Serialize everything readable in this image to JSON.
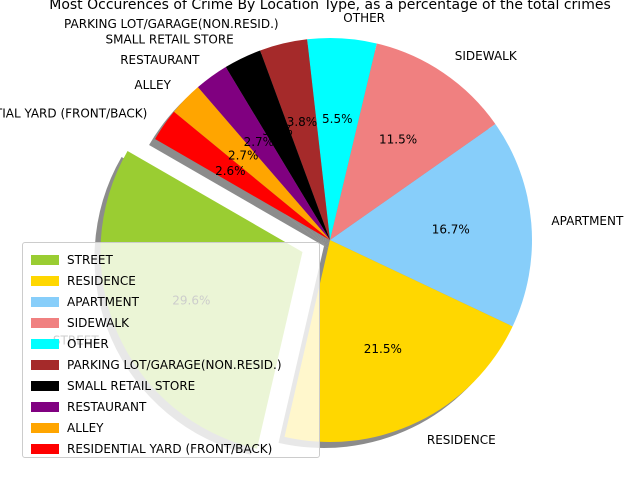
{
  "chart_data": {
    "type": "pie",
    "title": "Most Occurences of Crime By Location Type, as a percentage of the total crimes",
    "labels": [
      "STREET",
      "RESIDENCE",
      "APARTMENT",
      "SIDEWALK",
      "OTHER",
      "PARKING LOT/GARAGE(NON.RESID.)",
      "SMALL RETAIL STORE",
      "RESTAURANT",
      "ALLEY",
      "RESIDENTIAL YARD (FRONT/BACK)"
    ],
    "values": [
      29.6,
      21.5,
      16.7,
      11.5,
      5.5,
      3.8,
      3.0,
      2.7,
      2.7,
      2.6
    ],
    "pct_labels": [
      "29.6%",
      "21.5%",
      "16.7%",
      "11.5%",
      "5.5%",
      "3.8%",
      "3.0%",
      "2.7%",
      "2.7%",
      "2.6%"
    ],
    "colors": [
      "#9acd32",
      "#ffd700",
      "#87cefa",
      "#f08080",
      "#00ffff",
      "#a52a2a",
      "#000000",
      "#800080",
      "#ffa500",
      "#ff0000"
    ],
    "start_angle_deg": 150,
    "explode": "STREET",
    "shadow": true,
    "legend": "lower-left"
  }
}
